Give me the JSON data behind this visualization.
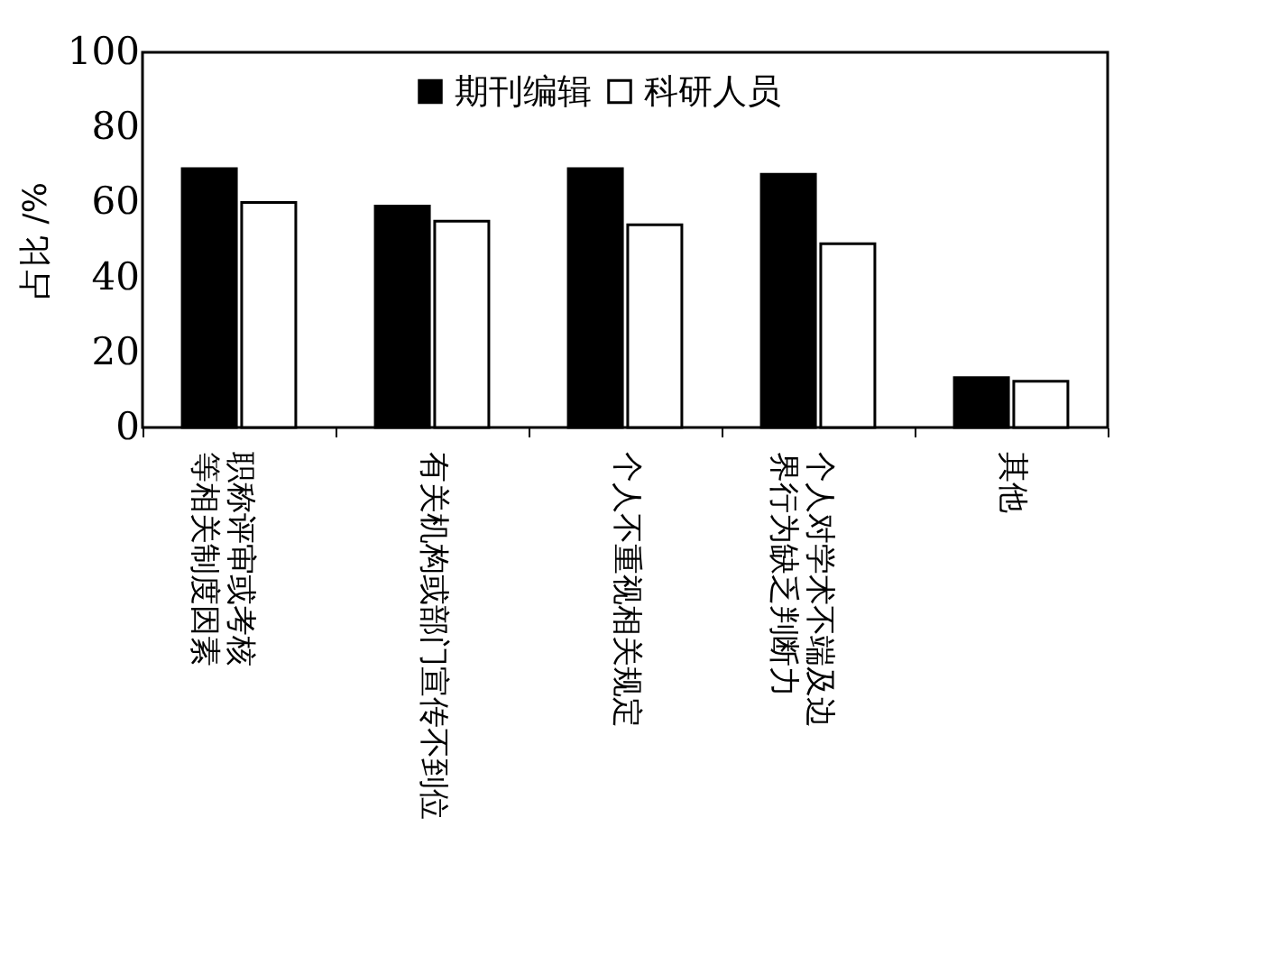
{
  "chart_data": {
    "type": "bar",
    "ylabel": "占比 /%",
    "categories": [
      "职称评审或考核等相关制度因素",
      "有关机构或部门宣传不到位",
      "个人不重视相关规定",
      "个人对学术不端及边界行为缺乏判断力",
      "其他"
    ],
    "series": [
      {
        "name": "期刊编辑",
        "color": "#000000",
        "values": [
          69,
          59,
          69,
          67.5,
          13.3
        ]
      },
      {
        "name": "科研人员",
        "color": "#ffffff",
        "values": [
          60,
          55,
          54,
          49,
          12.3
        ]
      }
    ],
    "ylim": [
      0,
      100
    ],
    "yticks": [
      0,
      20,
      40,
      60,
      80,
      100
    ],
    "grid": false,
    "legend": "top"
  }
}
